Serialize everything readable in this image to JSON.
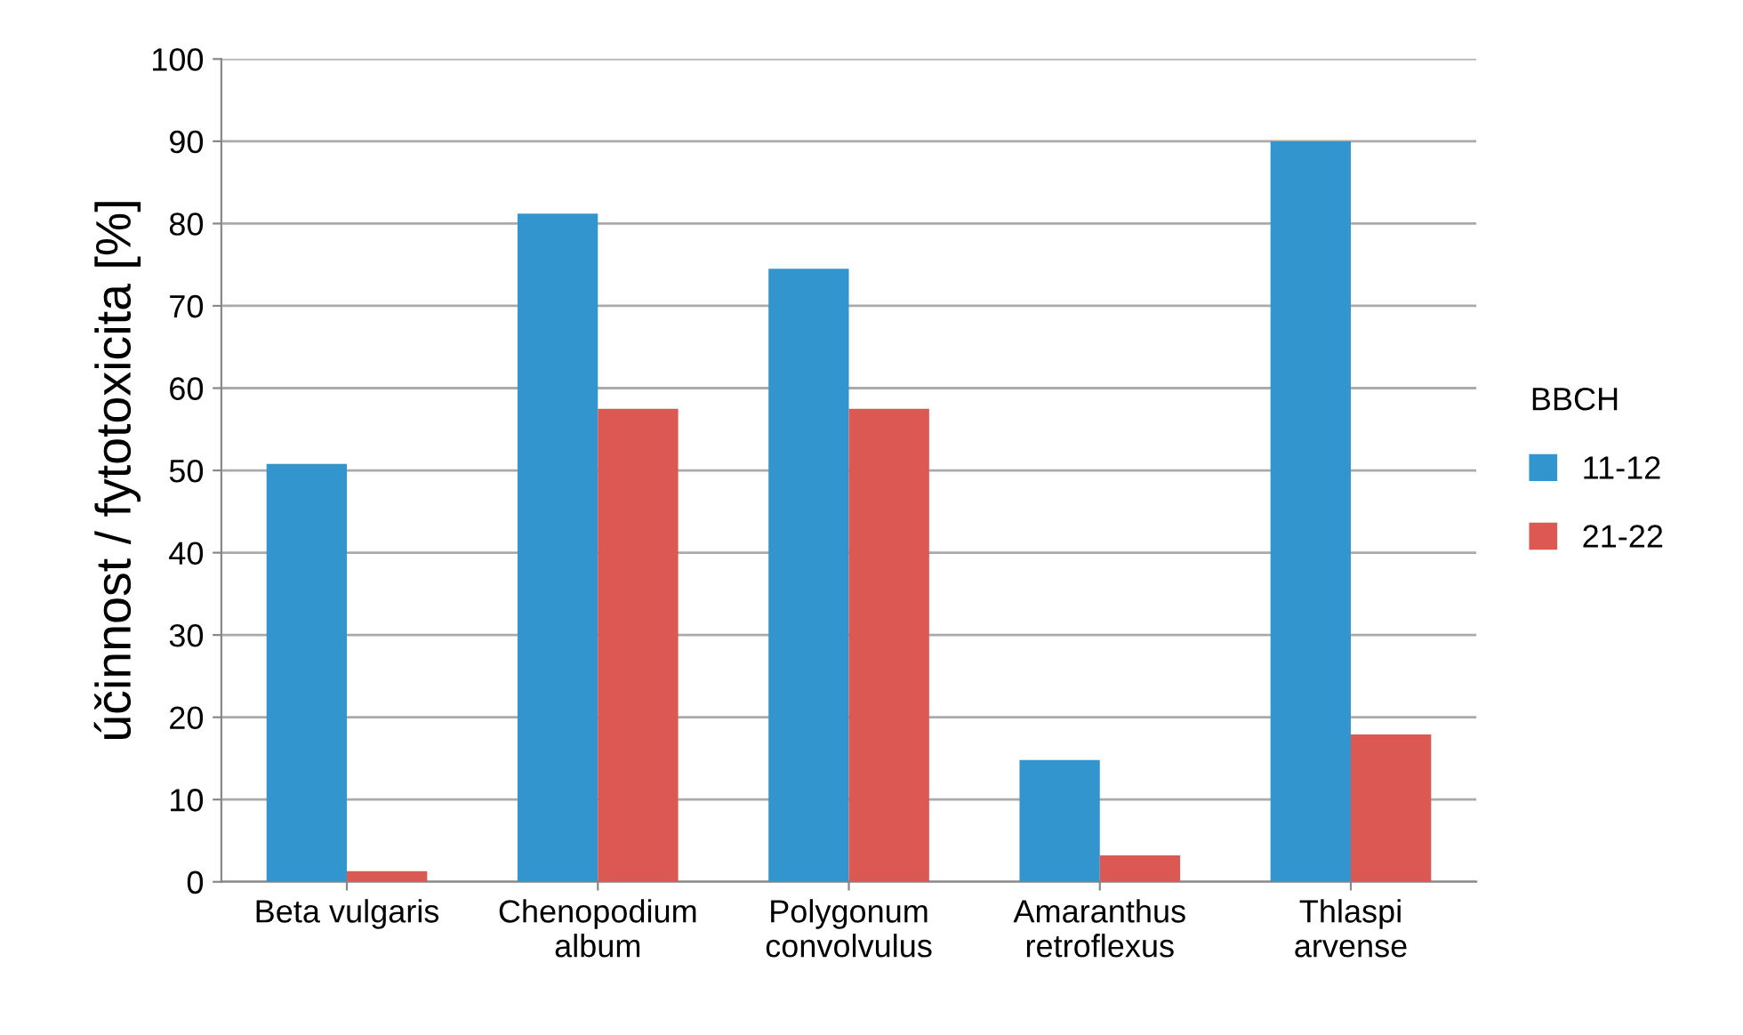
{
  "chart_data": {
    "type": "bar",
    "ylabel": "účinnost / fytotoxicita [%]",
    "legend_title": "BBCH",
    "categories": [
      "Beta vulgaris",
      "Chenopodium\nalbum",
      "Polygonum\nconvolvulus",
      "Amaranthus\nretroflexus",
      "Thlaspi\narvense"
    ],
    "series": [
      {
        "name": "11-12",
        "color": "#3395cd",
        "values": [
          50.8,
          81.2,
          74.5,
          14.8,
          90
        ]
      },
      {
        "name": "21-22",
        "color": "#dc5953",
        "values": [
          1.3,
          57.5,
          57.5,
          3.2,
          17.9
        ]
      }
    ],
    "ylim": [
      0,
      100
    ],
    "yticks": [
      0,
      10,
      20,
      30,
      40,
      50,
      60,
      70,
      80,
      90,
      100
    ],
    "grid": "y",
    "legend": "right"
  }
}
